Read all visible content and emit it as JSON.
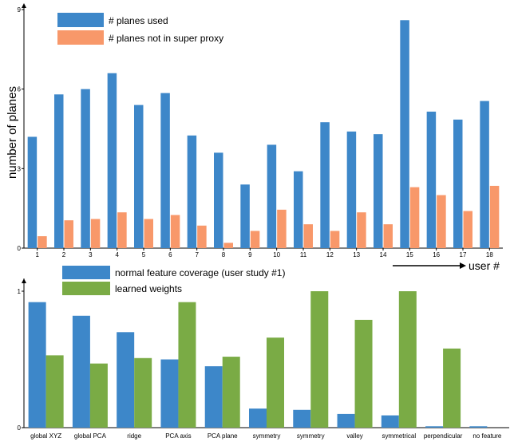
{
  "colors": {
    "blue": "#3d87c9",
    "orange": "#f8986a",
    "green": "#7aab45",
    "axis": "#000000"
  },
  "chart_data": [
    {
      "type": "bar",
      "ylabel": "number of planes",
      "xlabel": "user #",
      "ylim": [
        0,
        9
      ],
      "yticks": [
        "0",
        "3",
        "6",
        "9"
      ],
      "categories": [
        "1",
        "2",
        "3",
        "4",
        "5",
        "6",
        "7",
        "8",
        "9",
        "10",
        "11",
        "12",
        "13",
        "14",
        "15",
        "16",
        "17",
        "18"
      ],
      "legend_position": "top-left",
      "series": [
        {
          "name": "# planes used",
          "color": "#3d87c9",
          "values": [
            4.2,
            5.8,
            6.0,
            6.6,
            5.4,
            5.85,
            4.25,
            3.6,
            2.4,
            3.9,
            2.9,
            4.75,
            4.4,
            4.3,
            8.6,
            5.15,
            4.85,
            5.55
          ]
        },
        {
          "name": "# planes not in super proxy",
          "color": "#f8986a",
          "values": [
            0.45,
            1.05,
            1.1,
            1.35,
            1.1,
            1.25,
            0.85,
            0.2,
            0.65,
            1.45,
            0.9,
            0.65,
            1.35,
            0.9,
            2.3,
            2.0,
            1.4,
            2.35
          ]
        }
      ]
    },
    {
      "type": "bar",
      "ylim": [
        0,
        1
      ],
      "yticks": [
        "0",
        "1"
      ],
      "categories": [
        "global XYZ",
        "global PCA",
        "ridge",
        "PCA axis",
        "PCA plane",
        "symmetry",
        "symmetry",
        "valley",
        "symmetrical",
        "perpendicular",
        "no feature"
      ],
      "legend_position": "top-left",
      "series": [
        {
          "name": "normal feature coverage (user study #1)",
          "color": "#3d87c9",
          "values": [
            0.92,
            0.82,
            0.7,
            0.5,
            0.45,
            0.14,
            0.13,
            0.1,
            0.09,
            0.01,
            0.01
          ]
        },
        {
          "name": "learned weights",
          "color": "#7aab45",
          "values": [
            0.53,
            0.47,
            0.51,
            0.92,
            0.52,
            0.66,
            1.0,
            0.79,
            1.0,
            0.58,
            0.0
          ]
        }
      ]
    }
  ]
}
